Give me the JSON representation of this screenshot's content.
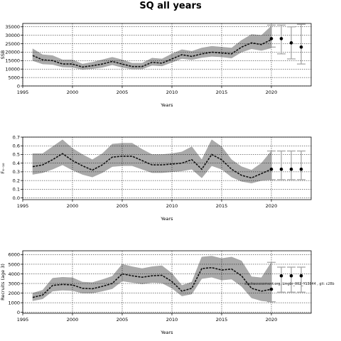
{
  "figure": {
    "title": "SQ all years",
    "note": "stockassessment.org, Lingbr_002_Y13844 , git: c28b"
  },
  "chart_data": [
    {
      "type": "line",
      "title": "",
      "xlabel": "Years",
      "ylabel": "SSB",
      "xlim": [
        1995,
        2024
      ],
      "ylim": [
        0,
        37000
      ],
      "x_ticks": [
        1995,
        2000,
        2005,
        2010,
        2015,
        2020
      ],
      "y_ticks": [
        0,
        5000,
        10000,
        15000,
        20000,
        25000,
        30000,
        35000
      ],
      "x_tick_labels": [
        "1995",
        "2000",
        "2005",
        "2010",
        "2015",
        "2020"
      ],
      "y_tick_labels": [
        "0",
        "5000",
        "10000",
        "15000",
        "20000",
        "25000",
        "30000",
        "35000"
      ],
      "grid": true,
      "years": [
        1996,
        1997,
        1998,
        1999,
        2000,
        2001,
        2002,
        2003,
        2004,
        2005,
        2006,
        2007,
        2008,
        2009,
        2010,
        2011,
        2012,
        2013,
        2014,
        2015,
        2016,
        2017,
        2018,
        2019,
        2020
      ],
      "estimate": [
        18000,
        15500,
        15000,
        13000,
        13000,
        11200,
        12000,
        13000,
        14500,
        13000,
        11500,
        11500,
        14000,
        13500,
        16000,
        18500,
        17500,
        19000,
        20000,
        19500,
        19000,
        23000,
        25500,
        24500,
        27500
      ],
      "lower": [
        15000,
        13000,
        12700,
        11200,
        11000,
        9800,
        10200,
        11000,
        12500,
        11000,
        10000,
        10000,
        12200,
        11800,
        14000,
        16200,
        15500,
        16800,
        17500,
        17200,
        16500,
        20000,
        22000,
        21000,
        22500
      ],
      "upper": [
        22000,
        18500,
        18000,
        15500,
        15500,
        13000,
        14000,
        15500,
        17000,
        15500,
        13500,
        13500,
        16500,
        16000,
        19000,
        21500,
        20500,
        22500,
        23500,
        23000,
        22500,
        27000,
        30500,
        30000,
        35500
      ],
      "forecast": [
        {
          "x": 2020,
          "value": 28000,
          "low": 23000,
          "high": 36000
        },
        {
          "x": 2021,
          "value": 28000,
          "low": 19000,
          "high": 36000
        },
        {
          "x": 2022,
          "value": 25500,
          "low": 16000,
          "high": 35000
        },
        {
          "x": 2023,
          "value": 23000,
          "low": 13000,
          "high": 36500
        }
      ]
    },
    {
      "type": "line",
      "title": "",
      "xlabel": "Years",
      "ylabel": "F₆₋₁₀",
      "xlim": [
        1995,
        2024
      ],
      "ylim": [
        -0.02,
        0.7
      ],
      "x_ticks": [
        1995,
        2000,
        2005,
        2010,
        2015,
        2020
      ],
      "y_ticks": [
        0.0,
        0.1,
        0.2,
        0.3,
        0.4,
        0.5,
        0.6,
        0.7
      ],
      "x_tick_labels": [
        "1995",
        "2000",
        "2005",
        "2010",
        "2015",
        "2020"
      ],
      "y_tick_labels": [
        "0.0",
        "0.1",
        "0.2",
        "0.3",
        "0.4",
        "0.5",
        "0.6",
        "0.7"
      ],
      "grid": true,
      "years": [
        1996,
        1997,
        1998,
        1999,
        2000,
        2001,
        2002,
        2003,
        2004,
        2005,
        2006,
        2007,
        2008,
        2009,
        2010,
        2011,
        2012,
        2013,
        2014,
        2015,
        2016,
        2017,
        2018,
        2019,
        2020
      ],
      "estimate": [
        0.36,
        0.38,
        0.44,
        0.51,
        0.43,
        0.37,
        0.32,
        0.38,
        0.47,
        0.48,
        0.48,
        0.43,
        0.38,
        0.38,
        0.39,
        0.4,
        0.44,
        0.33,
        0.5,
        0.44,
        0.33,
        0.26,
        0.23,
        0.28,
        0.33
      ],
      "lower": [
        0.27,
        0.29,
        0.33,
        0.38,
        0.32,
        0.27,
        0.24,
        0.29,
        0.36,
        0.37,
        0.37,
        0.33,
        0.29,
        0.29,
        0.3,
        0.31,
        0.33,
        0.23,
        0.37,
        0.33,
        0.24,
        0.19,
        0.17,
        0.2,
        0.21
      ],
      "upper": [
        0.51,
        0.51,
        0.59,
        0.67,
        0.57,
        0.5,
        0.44,
        0.51,
        0.62,
        0.63,
        0.63,
        0.56,
        0.5,
        0.5,
        0.51,
        0.53,
        0.59,
        0.44,
        0.67,
        0.59,
        0.44,
        0.36,
        0.32,
        0.4,
        0.54
      ],
      "forecast": [
        {
          "x": 2020,
          "value": 0.33,
          "low": 0.21,
          "high": 0.54
        },
        {
          "x": 2021,
          "value": 0.33,
          "low": 0.21,
          "high": 0.54
        },
        {
          "x": 2022,
          "value": 0.33,
          "low": 0.21,
          "high": 0.54
        },
        {
          "x": 2023,
          "value": 0.33,
          "low": 0.21,
          "high": 0.54
        }
      ]
    },
    {
      "type": "line",
      "title": "",
      "xlabel": "Years",
      "ylabel": "Recruits (age 3)",
      "xlim": [
        1995,
        2024
      ],
      "ylim": [
        -100,
        6400
      ],
      "x_ticks": [
        1995,
        2000,
        2005,
        2010,
        2015,
        2020
      ],
      "y_ticks": [
        0,
        1000,
        2000,
        3000,
        4000,
        5000,
        6000
      ],
      "x_tick_labels": [
        "1995",
        "2000",
        "2005",
        "2010",
        "2015",
        "2020"
      ],
      "y_tick_labels": [
        "0",
        "1000",
        "2000",
        "3000",
        "4000",
        "5000",
        "6000"
      ],
      "grid": true,
      "years": [
        1996,
        1997,
        1998,
        1999,
        2000,
        2001,
        2002,
        2003,
        2004,
        2005,
        2006,
        2007,
        2008,
        2009,
        2010,
        2011,
        2012,
        2013,
        2014,
        2015,
        2016,
        2017,
        2018,
        2019,
        2020
      ],
      "estimate": [
        1550,
        1800,
        2800,
        2900,
        2850,
        2500,
        2450,
        2700,
        3000,
        4000,
        3800,
        3650,
        3800,
        3850,
        3200,
        2200,
        2500,
        4550,
        4650,
        4400,
        4500,
        3800,
        2500,
        2200,
        2400
      ],
      "lower": [
        1200,
        1400,
        2200,
        2300,
        2250,
        2000,
        2000,
        2200,
        2450,
        3250,
        3100,
        2950,
        3100,
        3050,
        2500,
        1700,
        1900,
        3500,
        3650,
        3350,
        3450,
        2700,
        1500,
        1200,
        1100
      ],
      "upper": [
        2000,
        2300,
        3550,
        3650,
        3600,
        3150,
        3100,
        3400,
        3750,
        5000,
        4750,
        4550,
        4750,
        4850,
        4050,
        2800,
        3150,
        5750,
        5850,
        5600,
        5750,
        5350,
        3700,
        3600,
        5200
      ],
      "forecast": [
        {
          "x": 2020,
          "value": 2400,
          "low": 1100,
          "high": 5200
        },
        {
          "x": 2021,
          "value": 3800,
          "low": 2100,
          "high": 4700
        },
        {
          "x": 2022,
          "value": 3800,
          "low": 2100,
          "high": 4700
        },
        {
          "x": 2023,
          "value": 3800,
          "low": 2100,
          "high": 4700
        }
      ]
    }
  ]
}
